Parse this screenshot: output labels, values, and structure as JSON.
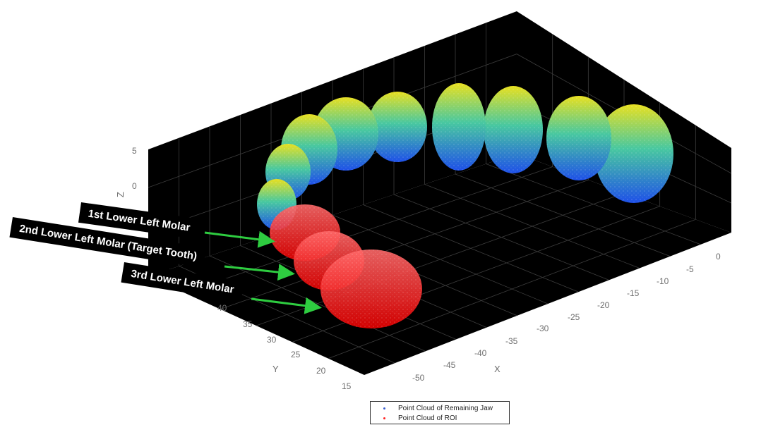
{
  "chart_data": {
    "type": "scatter",
    "title": "",
    "xlabel": "X",
    "ylabel": "Y",
    "zlabel": "Z",
    "xlim": [
      -55,
      5
    ],
    "ylim": [
      15,
      45
    ],
    "zlim": [
      -5,
      7
    ],
    "x_ticks": [
      "0",
      "-5",
      "-10",
      "-15",
      "-20",
      "-25",
      "-30",
      "-35",
      "-40",
      "-45",
      "-50"
    ],
    "y_ticks": [
      "15",
      "20",
      "25",
      "30",
      "35",
      "40"
    ],
    "z_ticks": [
      "0",
      "5"
    ],
    "grid": true,
    "background": "#000000",
    "legend_placement": "bottom-center",
    "series": [
      {
        "name": "Point Cloud of Remaining Jaw",
        "color": "#3a5fd0",
        "colormap": "jet (by height)"
      },
      {
        "name": "Point Cloud of ROI",
        "color": "#ff2020"
      }
    ],
    "annotations": [
      {
        "text": "1st Lower Left Molar"
      },
      {
        "text": "2nd Lower Left Molar (Target Tooth)"
      },
      {
        "text": "3rd Lower Left Molar"
      }
    ],
    "arrow_color": "#2ecc40"
  }
}
